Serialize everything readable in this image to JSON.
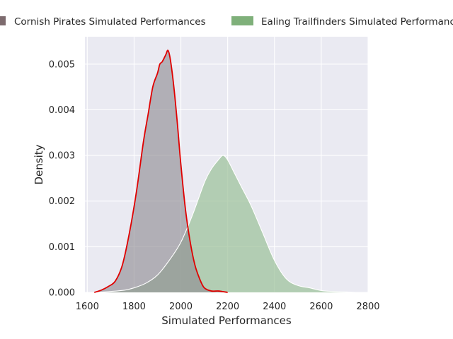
{
  "chart_data": {
    "type": "area",
    "xlabel": "Simulated Performances",
    "ylabel": "Density",
    "xlim": [
      1590,
      2800
    ],
    "ylim": [
      0,
      0.0056
    ],
    "grid": true,
    "legend_position": "top",
    "x_ticks": [
      1600,
      1800,
      2000,
      2200,
      2400,
      2600,
      2800
    ],
    "x_tick_labels": [
      "1600",
      "1800",
      "2000",
      "2200",
      "2400",
      "2600",
      "2800"
    ],
    "y_ticks": [
      0,
      0.001,
      0.002,
      0.003,
      0.004,
      0.005
    ],
    "y_tick_labels": [
      "0.000",
      "0.001",
      "0.002",
      "0.003",
      "0.004",
      "0.005"
    ],
    "series": [
      {
        "name": "Cornish Pirates Simulated Performances",
        "color": "#7d6b6e",
        "fill_color": "#8e8a91",
        "line_color": "#e00000",
        "x": [
          1630,
          1660,
          1690,
          1720,
          1750,
          1780,
          1810,
          1840,
          1860,
          1880,
          1900,
          1910,
          1920,
          1935,
          1945,
          1955,
          1970,
          1985,
          2000,
          2020,
          2040,
          2060,
          2080,
          2100,
          2130,
          2160,
          2200
        ],
        "y": [
          0.0,
          5e-05,
          0.00013,
          0.00025,
          0.0006,
          0.0013,
          0.0022,
          0.0033,
          0.0039,
          0.0045,
          0.0048,
          0.005,
          0.00505,
          0.0052,
          0.0053,
          0.0051,
          0.0045,
          0.0037,
          0.0028,
          0.0018,
          0.0011,
          0.0006,
          0.0003,
          0.0001,
          3e-05,
          3e-05,
          0.0
        ]
      },
      {
        "name": "Ealing Trailfinders Simulated Performances",
        "color": "#7fb07a",
        "fill_color": "#9cc29a",
        "line_color": "#ffffff",
        "x": [
          1640,
          1700,
          1760,
          1800,
          1850,
          1900,
          1950,
          2000,
          2050,
          2100,
          2130,
          2160,
          2180,
          2200,
          2230,
          2260,
          2300,
          2350,
          2400,
          2450,
          2500,
          2550,
          2600,
          2650,
          2700,
          2750
        ],
        "y": [
          0.0,
          2e-05,
          5e-05,
          0.0001,
          0.0002,
          0.00038,
          0.0007,
          0.0011,
          0.0017,
          0.0024,
          0.0027,
          0.0029,
          0.003,
          0.0029,
          0.0026,
          0.0023,
          0.0019,
          0.0013,
          0.0007,
          0.0003,
          0.00015,
          0.0001,
          4e-05,
          2e-05,
          1e-05,
          0.0
        ]
      }
    ]
  }
}
